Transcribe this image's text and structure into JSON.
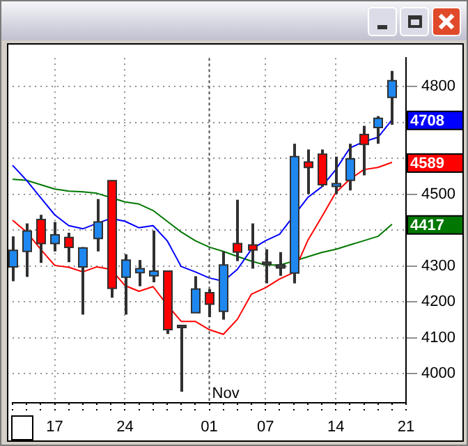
{
  "chart_data": {
    "type": "candlestick",
    "categories": [
      null,
      null,
      null,
      "17",
      null,
      null,
      null,
      null,
      "24",
      null,
      null,
      null,
      null,
      null,
      "01",
      null,
      null,
      null,
      "07",
      null,
      null,
      null,
      null,
      "14",
      null,
      null,
      null,
      null,
      "21"
    ],
    "ohlc": [
      [
        4298,
        4383,
        4258,
        4344
      ],
      [
        4341,
        4419,
        4270,
        4398
      ],
      [
        4430,
        4443,
        4309,
        4363
      ],
      [
        4363,
        4423,
        4341,
        4387
      ],
      [
        4380,
        4393,
        4311,
        4352
      ],
      [
        4298,
        4353,
        4165,
        4351
      ],
      [
        4377,
        4487,
        4341,
        4423
      ],
      [
        4538,
        4539,
        4212,
        4238
      ],
      [
        4269,
        4333,
        4165,
        4317
      ],
      [
        4282,
        4317,
        4244,
        4293
      ],
      [
        4273,
        4399,
        4255,
        4286
      ],
      [
        4286,
        4286,
        4111,
        4123
      ],
      [
        4130,
        4135,
        3950,
        4135
      ],
      [
        4170,
        4272,
        4170,
        4236
      ],
      [
        4226,
        4236,
        4158,
        4194
      ],
      [
        4174,
        4341,
        4151,
        4303
      ],
      [
        4363,
        4485,
        4314,
        4339
      ],
      [
        4359,
        4419,
        4293,
        4345
      ],
      [
        4305,
        4347,
        4252,
        4311
      ],
      [
        4303,
        4339,
        4273,
        4295
      ],
      [
        4281,
        4641,
        4252,
        4605
      ],
      [
        4590,
        4625,
        4501,
        4575
      ],
      [
        4612,
        4625,
        4521,
        4527
      ],
      [
        4522,
        4605,
        4501,
        4530
      ],
      [
        4539,
        4641,
        4511,
        4599
      ],
      [
        4667,
        4691,
        4553,
        4639
      ],
      [
        4686,
        4718,
        4641,
        4712
      ],
      [
        4770,
        4844,
        4694,
        4817
      ],
      null
    ],
    "colors": [
      "#1e88f0",
      "#1e88f0",
      "#ff0000",
      "#1e88f0",
      "#ff0000",
      "#1e88f0",
      "#1e88f0",
      "#ff0000",
      "#1e88f0",
      "#1e88f0",
      "#1e88f0",
      "#ff0000",
      "#404040",
      "#1e88f0",
      "#ff0000",
      "#1e88f0",
      "#ff0000",
      "#ff0000",
      "#404040",
      "#404040",
      "#1e88f0",
      "#ff0000",
      "#ff0000",
      "#1e88f0",
      "#1e88f0",
      "#ff0000",
      "#1e88f0",
      "#1e88f0",
      null
    ],
    "series": [
      {
        "type": "line",
        "color": "#0000ff",
        "values": [
          4581,
          4539,
          4491,
          4443,
          4413,
          4404,
          4419,
          4433,
          4425,
          4407,
          4413,
          4371,
          4299,
          4284,
          4267,
          4258,
          4291,
          4347,
          4371,
          4389,
          null,
          4491,
          4521,
          4569,
          4629,
          4647,
          4659,
          4708,
          null
        ],
        "value_labels": [
          null,
          null,
          null,
          null,
          null,
          null,
          null,
          null,
          null,
          null,
          null,
          null,
          null,
          null,
          null,
          null,
          null,
          null,
          null,
          null,
          null,
          null,
          null,
          null,
          null,
          null,
          null,
          "4708",
          null
        ]
      },
      {
        "type": "line",
        "color": "#ff0000",
        "values": [
          4428,
          4395,
          4347,
          4302,
          4297,
          4284,
          4298,
          4291,
          4246,
          4230,
          4243,
          4192,
          4146,
          4146,
          4123,
          4110,
          4152,
          4222,
          4240,
          4264,
          4282,
          4371,
          4437,
          4505,
          4542,
          4569,
          4575,
          4589,
          null
        ],
        "value_labels": [
          null,
          null,
          null,
          null,
          null,
          null,
          null,
          null,
          null,
          null,
          null,
          null,
          null,
          null,
          null,
          null,
          null,
          null,
          null,
          null,
          null,
          null,
          null,
          null,
          null,
          null,
          null,
          "4589",
          null
        ]
      },
      {
        "type": "line",
        "color": "#007700",
        "values": [
          4542,
          4539,
          4527,
          4515,
          4509,
          4507,
          4503,
          4491,
          4479,
          4473,
          4455,
          4425,
          4395,
          4371,
          4353,
          4341,
          4327,
          4314,
          4303,
          4303,
          4314,
          4326,
          4338,
          4347,
          4359,
          4371,
          4383,
          4417,
          null
        ],
        "value_labels": [
          null,
          null,
          null,
          null,
          null,
          null,
          null,
          null,
          null,
          null,
          null,
          null,
          null,
          null,
          null,
          null,
          null,
          null,
          null,
          null,
          null,
          null,
          null,
          null,
          null,
          null,
          null,
          "4417",
          null
        ]
      }
    ],
    "ylim": [
      3920,
      4880
    ],
    "yticks": [
      4000,
      4100,
      4200,
      4300,
      {
        "value": 4400,
        "label": null
      },
      4500,
      {
        "value": 4600,
        "label": null
      },
      {
        "value": 4700,
        "label": null
      },
      4800
    ],
    "grid": true,
    "ref_lines": [
      {
        "axis": "x",
        "value": "01",
        "label": "Nov",
        "line_style": "dotted"
      }
    ]
  }
}
